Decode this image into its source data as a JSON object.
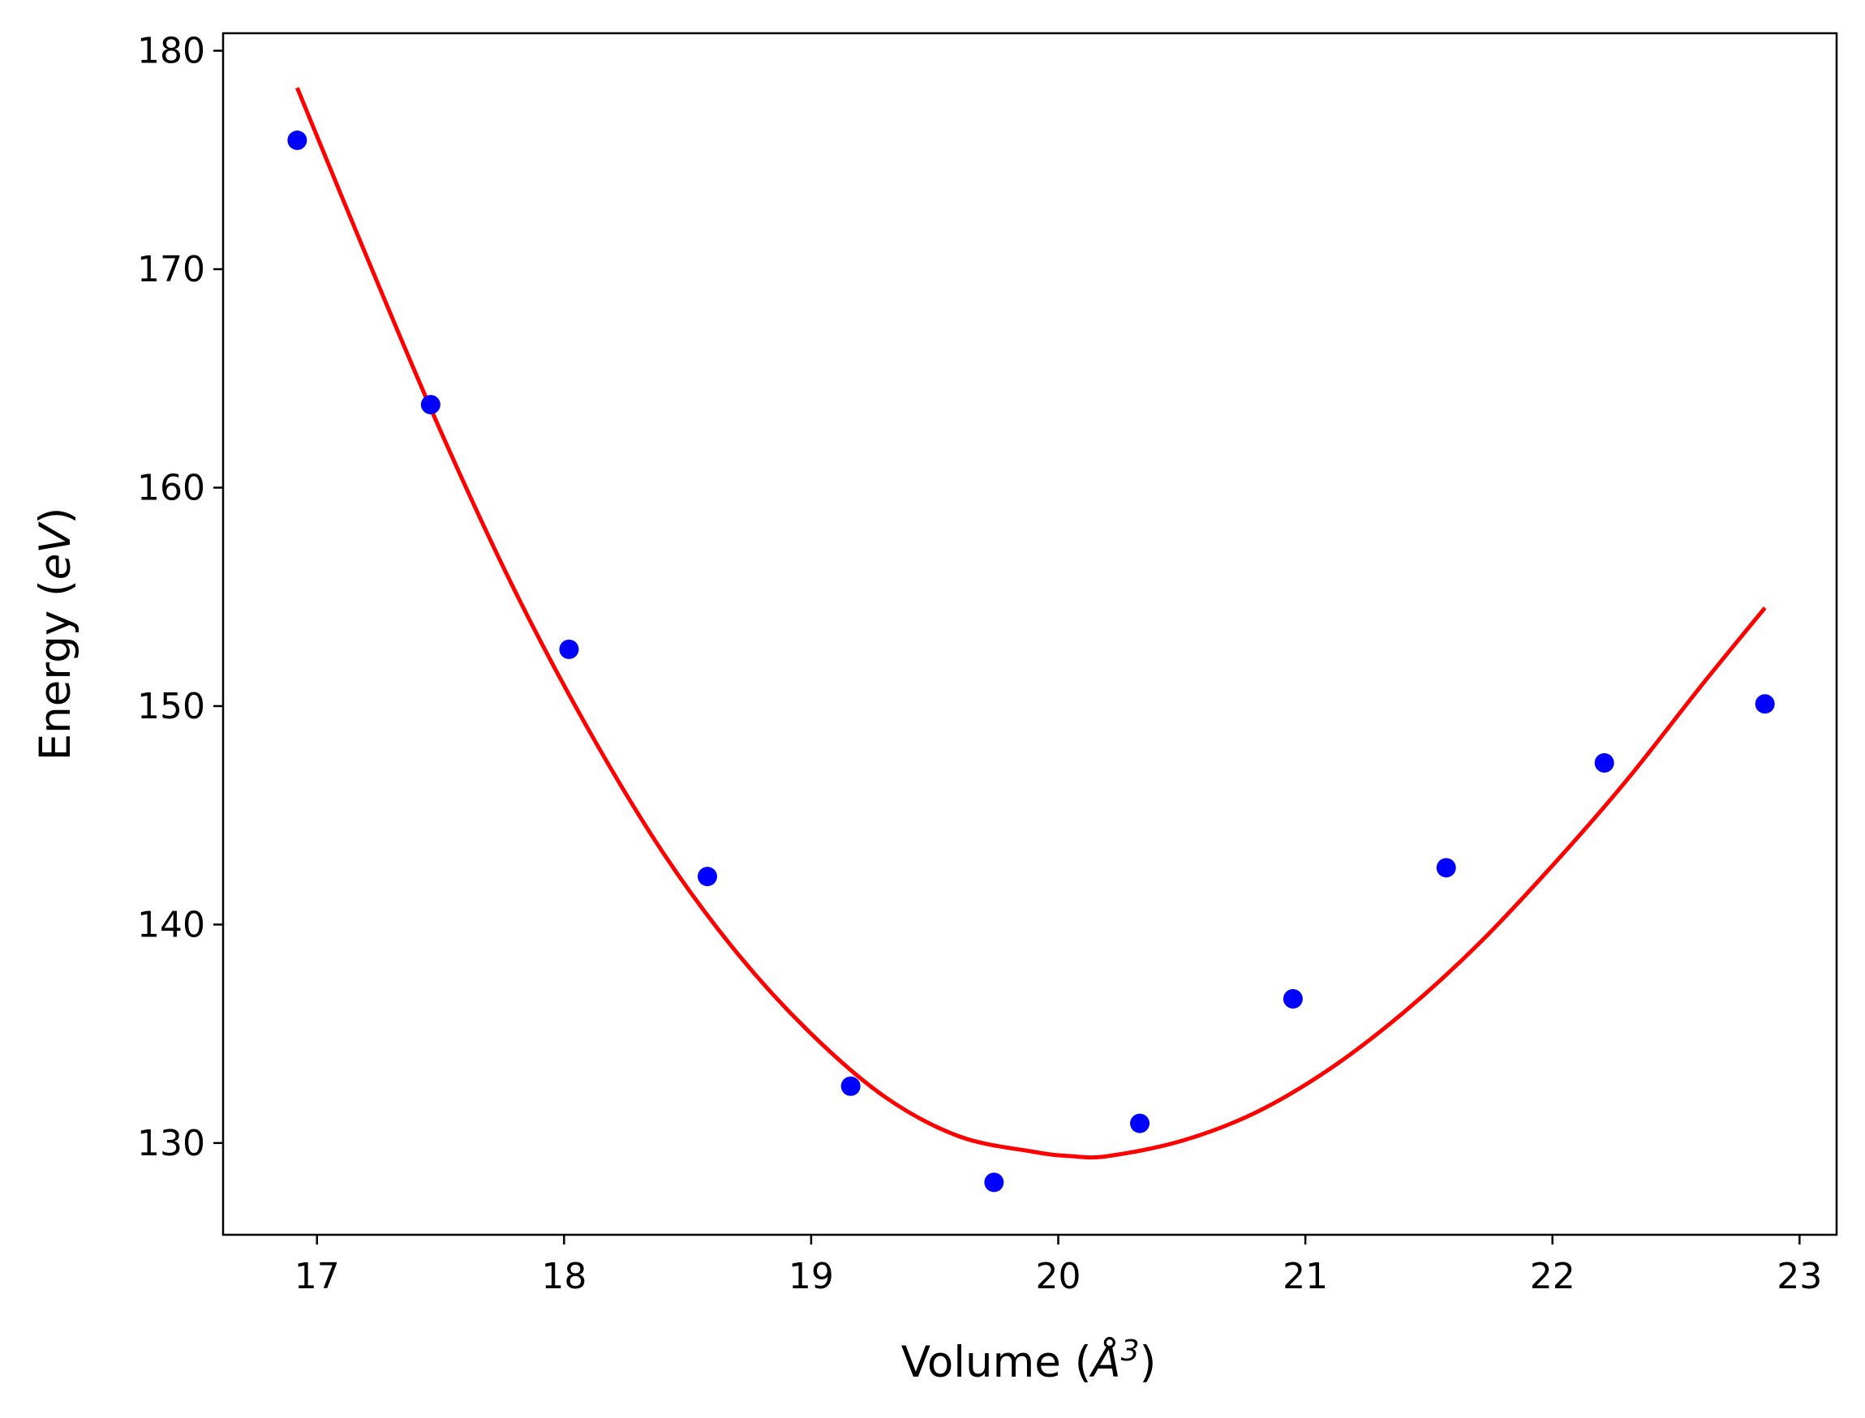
{
  "chart_data": {
    "type": "scatter",
    "xlabel": {
      "prefix": "Volume (",
      "symbol": "Å",
      "sup": "3",
      "suffix": ")"
    },
    "ylabel": {
      "prefix": "Energy (",
      "unit": "eV",
      "suffix": ")"
    },
    "xlim": [
      16.62,
      23.15
    ],
    "ylim": [
      125.8,
      180.8
    ],
    "xticks": [
      17,
      18,
      19,
      20,
      21,
      22,
      23
    ],
    "yticks": [
      130,
      140,
      150,
      160,
      170,
      180
    ],
    "grid": false,
    "series": [
      {
        "kind": "points",
        "color": "#0000ff",
        "x": [
          16.92,
          17.46,
          18.02,
          18.58,
          19.16,
          19.74,
          20.33,
          20.95,
          21.57,
          22.21,
          22.86
        ],
        "y": [
          175.9,
          163.8,
          152.6,
          142.2,
          132.6,
          128.2,
          130.9,
          136.6,
          142.6,
          147.4,
          150.1
        ]
      },
      {
        "kind": "fit-curve",
        "color": "#ff0000",
        "x": [
          16.92,
          17.2,
          17.5,
          17.8,
          18.1,
          18.4,
          18.7,
          19.0,
          19.3,
          19.6,
          19.9,
          20.05,
          20.2,
          20.5,
          20.8,
          21.1,
          21.4,
          21.7,
          22.0,
          22.3,
          22.6,
          22.86
        ],
        "y": [
          178.3,
          170.6,
          162.6,
          155.3,
          148.9,
          143.3,
          138.7,
          135.0,
          132.1,
          130.3,
          129.6,
          129.4,
          129.4,
          130.1,
          131.4,
          133.4,
          136.0,
          139.1,
          142.7,
          146.6,
          150.9,
          154.5
        ]
      }
    ]
  }
}
